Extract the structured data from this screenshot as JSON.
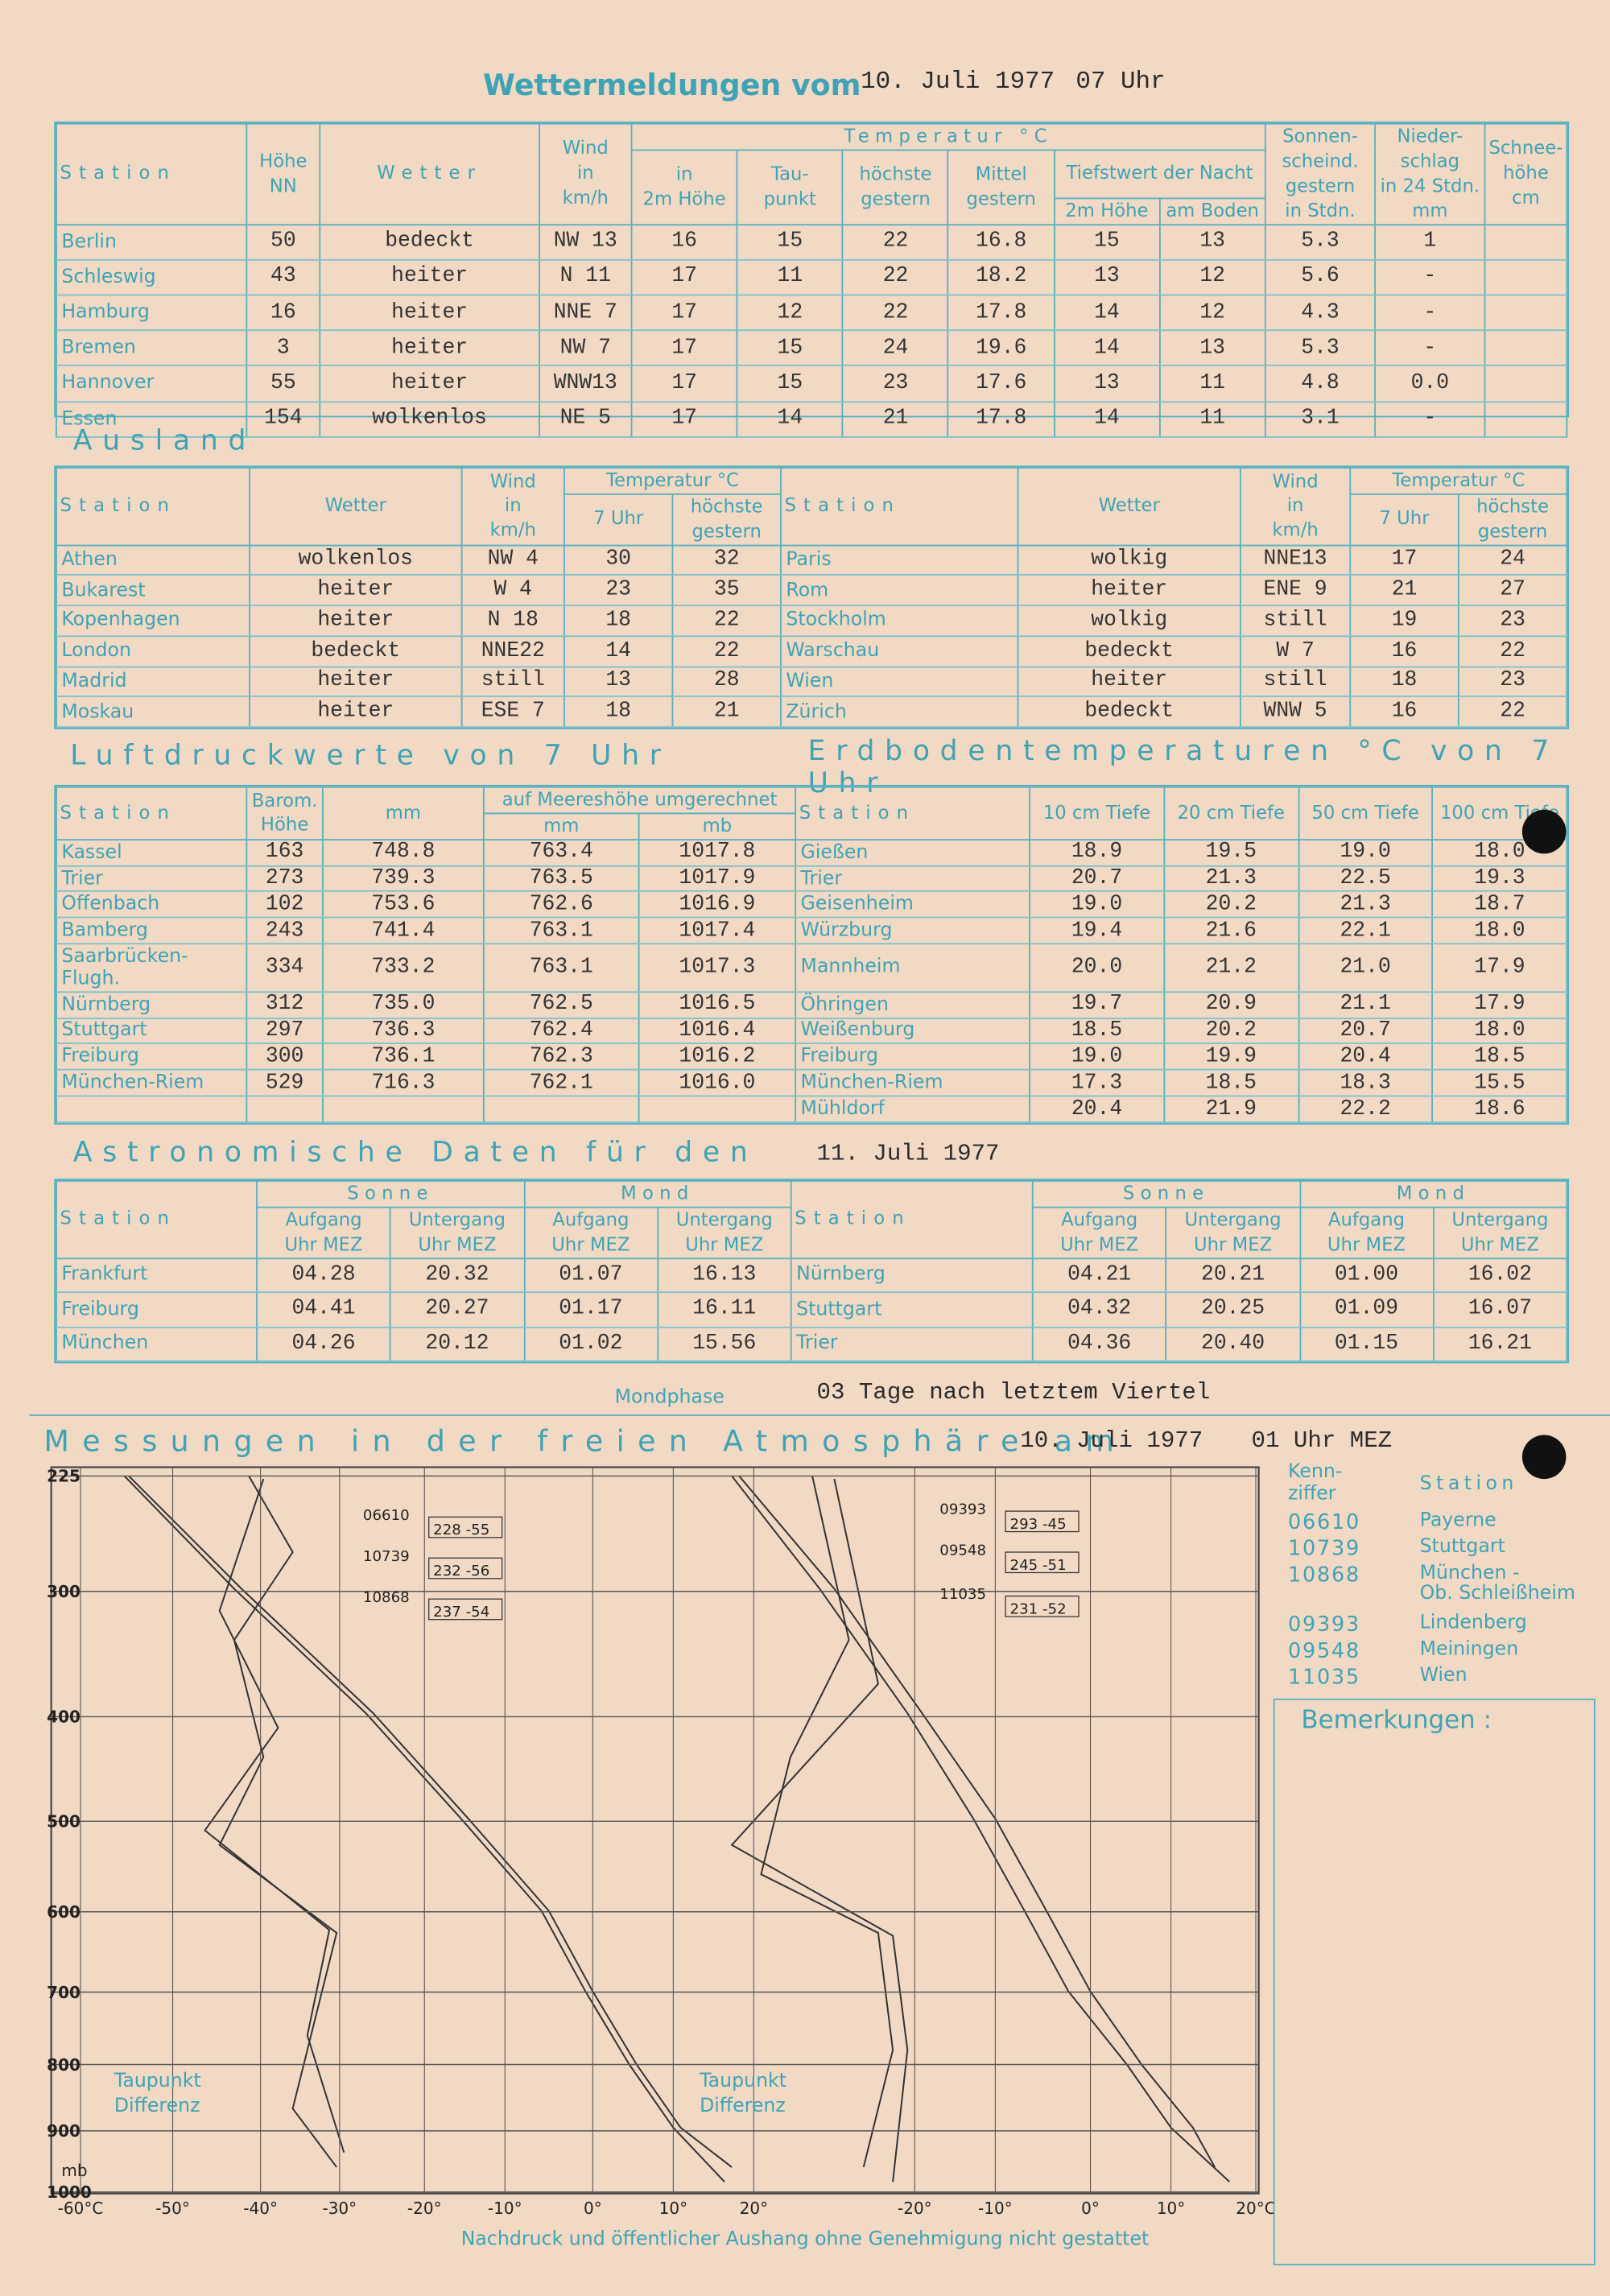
{
  "header": {
    "title": "Wettermeldungen vom",
    "date": "10. Juli 1977",
    "time": "07 Uhr"
  },
  "inland": {
    "headers": [
      "Station",
      "Höhe\nNN",
      "Wetter",
      "Wind\nin\nkm/h",
      "Temperatur °C",
      "in\n2m Höhe",
      "Tau-\npunkt",
      "höchste\ngestern",
      "Mittel\ngestern",
      "Tiefstwert der Nacht",
      "2m Höhe",
      "am Boden",
      "Sonnen-\nscheind.\ngestern\nin Stdn.",
      "Nieder-\nschlag\nin 24 Stdn.\nmm",
      "Schnee-\nhöhe\ncm"
    ],
    "rows": [
      [
        "Berlin",
        "50",
        "bedeckt",
        "NW 13",
        "16",
        "15",
        "22",
        "16.8",
        "15",
        "13",
        "5.3",
        "1",
        null
      ],
      [
        "Schleswig",
        "43",
        "heiter",
        "N 11",
        "17",
        "11",
        "22",
        "18.2",
        "13",
        "12",
        "5.6",
        "-",
        null
      ],
      [
        "Hamburg",
        "16",
        "heiter",
        "NNE 7",
        "17",
        "12",
        "22",
        "17.8",
        "14",
        "12",
        "4.3",
        "-",
        null
      ],
      [
        "Bremen",
        "3",
        "heiter",
        "NW 7",
        "17",
        "15",
        "24",
        "19.6",
        "14",
        "13",
        "5.3",
        "-",
        null
      ],
      [
        "Hannover",
        "55",
        "heiter",
        "WNW13",
        "17",
        "15",
        "23",
        "17.6",
        "13",
        "11",
        "4.8",
        "0.0",
        null
      ],
      [
        "Essen",
        "154",
        "wolkenlos",
        "NE 5",
        "17",
        "14",
        "21",
        "17.8",
        "14",
        "11",
        "3.1",
        "-",
        null
      ]
    ]
  },
  "ausland": {
    "title": "Ausland",
    "headers": [
      "Station",
      "Wetter",
      "Wind\nin\nkm/h",
      "Temperatur °C",
      "7 Uhr",
      "höchste\ngestern"
    ],
    "left": [
      [
        "Athen",
        "wolkenlos",
        "NW 4",
        "30",
        "32"
      ],
      [
        "Bukarest",
        "heiter",
        "W 4",
        "23",
        "35"
      ],
      [
        "Kopenhagen",
        "heiter",
        "N 18",
        "18",
        "22"
      ],
      [
        "London",
        "bedeckt",
        "NNE22",
        "14",
        "22"
      ],
      [
        "Madrid",
        "heiter",
        "still",
        "13",
        "28"
      ],
      [
        "Moskau",
        "heiter",
        "ESE 7",
        "18",
        "21"
      ]
    ],
    "right": [
      [
        "Paris",
        "wolkig",
        "NNE13",
        "17",
        "24"
      ],
      [
        "Rom",
        "heiter",
        "ENE 9",
        "21",
        "27"
      ],
      [
        "Stockholm",
        "wolkig",
        "still",
        "19",
        "23"
      ],
      [
        "Warschau",
        "bedeckt",
        "W 7",
        "16",
        "22"
      ],
      [
        "Wien",
        "heiter",
        "still",
        "18",
        "23"
      ],
      [
        "Zürich",
        "bedeckt",
        "WNW 5",
        "16",
        "22"
      ]
    ]
  },
  "luftdruck": {
    "title": "Luftdruckwerte von 7 Uhr",
    "headers": [
      "Station",
      "Barom.\nHöhe",
      "mm",
      "auf Meereshöhe umgerechnet",
      "mm",
      "mb"
    ],
    "rows": [
      [
        "Kassel",
        "163",
        "748.8",
        "763.4",
        "1017.8"
      ],
      [
        "Trier",
        "273",
        "739.3",
        "763.5",
        "1017.9"
      ],
      [
        "Offenbach",
        "102",
        "753.6",
        "762.6",
        "1016.9"
      ],
      [
        "Bamberg",
        "243",
        "741.4",
        "763.1",
        "1017.4"
      ],
      [
        "Saarbrücken-Flugh.",
        "334",
        "733.2",
        "763.1",
        "1017.3"
      ],
      [
        "Nürnberg",
        "312",
        "735.0",
        "762.5",
        "1016.5"
      ],
      [
        "Stuttgart",
        "297",
        "736.3",
        "762.4",
        "1016.4"
      ],
      [
        "Freiburg",
        "300",
        "736.1",
        "762.3",
        "1016.2"
      ],
      [
        "München-Riem",
        "529",
        "716.3",
        "762.1",
        "1016.0"
      ]
    ]
  },
  "erdboden": {
    "title": "Erdbodentemperaturen °C von 7 Uhr",
    "headers": [
      "Station",
      "10 cm Tiefe",
      "20 cm Tiefe",
      "50 cm Tiefe",
      "100 cm Tiefe"
    ],
    "rows": [
      [
        "Gießen",
        "18.9",
        "19.5",
        "19.0",
        "18.0"
      ],
      [
        "Trier",
        "20.7",
        "21.3",
        "22.5",
        "19.3"
      ],
      [
        "Geisenheim",
        "19.0",
        "20.2",
        "21.3",
        "18.7"
      ],
      [
        "Würzburg",
        "19.4",
        "21.6",
        "22.1",
        "18.0"
      ],
      [
        "Mannheim",
        "20.0",
        "21.2",
        "21.0",
        "17.9"
      ],
      [
        "Öhringen",
        "19.7",
        "20.9",
        "21.1",
        "17.9"
      ],
      [
        "Weißenburg",
        "18.5",
        "20.2",
        "20.7",
        "18.0"
      ],
      [
        "Freiburg",
        "19.0",
        "19.9",
        "20.4",
        "18.5"
      ],
      [
        "München-Riem",
        "17.3",
        "18.5",
        "18.3",
        "15.5"
      ],
      [
        "Mühldorf",
        "20.4",
        "21.9",
        "22.2",
        "18.6"
      ]
    ]
  },
  "astro": {
    "title": "Astronomische Daten für den",
    "date": "11. Juli 1977",
    "headers": [
      "Station",
      "Sonne",
      "Mond",
      "Aufgang\nUhr MEZ",
      "Untergang\nUhr MEZ"
    ],
    "left": [
      [
        "Frankfurt",
        "04.28",
        "20.32",
        "01.07",
        "16.13"
      ],
      [
        "Freiburg",
        "04.41",
        "20.27",
        "01.17",
        "16.11"
      ],
      [
        "München",
        "04.26",
        "20.12",
        "01.02",
        "15.56"
      ]
    ],
    "right": [
      [
        "Nürnberg",
        "04.21",
        "20.21",
        "01.00",
        "16.02"
      ],
      [
        "Stuttgart",
        "04.32",
        "20.25",
        "01.09",
        "16.07"
      ],
      [
        "Trier",
        "04.36",
        "20.40",
        "01.15",
        "16.21"
      ]
    ],
    "mondphase_label": "Mondphase",
    "mondphase": "03 Tage nach letztem Viertel"
  },
  "atmosphaere": {
    "title": "Messungen in der freien Atmosphäre am",
    "date": "10. Juli 1977",
    "time": "01 Uhr MEZ",
    "pressure_ticks": [
      225,
      300,
      400,
      500,
      600,
      700,
      800,
      900,
      1000
    ],
    "pressure_unit": "mb",
    "temp_labels_left": [
      "-60°C",
      "-50°",
      "-40°",
      "-30°",
      "-20°",
      "-10°",
      "0°",
      "10°",
      "20°"
    ],
    "temp_labels_right": [
      "-20°",
      "-10°",
      "0°",
      "10°",
      "20°C"
    ],
    "annotation": "Taupunkt\nDifferenz",
    "wind_boxes": [
      [
        "06610",
        "228 -55"
      ],
      [
        "10739",
        "232 -56"
      ],
      [
        "10868",
        "237 -54"
      ],
      [
        "09393",
        "293 -45"
      ],
      [
        "09548",
        "245 -51"
      ],
      [
        "11035",
        "231 -52"
      ]
    ],
    "stations_header": [
      "Kenn-\nziffer",
      "Station"
    ],
    "stations": [
      [
        "06610",
        "Payerne"
      ],
      [
        "10739",
        "Stuttgart"
      ],
      [
        "10868",
        "München -\nOb. Schleißheim"
      ],
      [
        "09393",
        "Lindenberg"
      ],
      [
        "09548",
        "Meiningen"
      ],
      [
        "11035",
        "Wien"
      ]
    ],
    "remarks": "Bemerkungen :"
  },
  "footer": "Nachdruck und öffentlicher Aushang ohne Genehmigung nicht gestattet"
}
